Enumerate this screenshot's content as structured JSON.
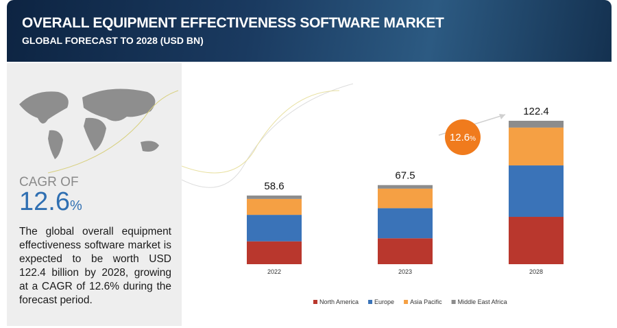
{
  "chart_data": {
    "type": "stacked-bar",
    "title": "OVERALL EQUIPMENT EFFECTIVENESS SOFTWARE MARKET",
    "subtitle": "GLOBAL FORECAST TO 2028 (USD BN)",
    "categories": [
      "2022",
      "2023",
      "2028"
    ],
    "series": [
      {
        "name": "North America",
        "color": "#b9372d",
        "values": [
          19.5,
          22.1,
          40.4
        ]
      },
      {
        "name": "Europe",
        "color": "#3a73b8",
        "values": [
          22.6,
          25.7,
          43.9
        ]
      },
      {
        "name": "Asia Pacific",
        "color": "#f5a044",
        "values": [
          13.6,
          16.7,
          32.3
        ]
      },
      {
        "name": "Middle East Africa",
        "color": "#8c8c8c",
        "values": [
          2.9,
          3.0,
          5.8
        ]
      }
    ],
    "totals": [
      58.6,
      67.5,
      122.4
    ],
    "badge": {
      "value": "12.6",
      "unit": "%"
    }
  },
  "panel": {
    "cagr_label": "CAGR OF",
    "cagr_value": "12.6",
    "cagr_unit": "%",
    "description": "The global overall equipment effectiveness software market is expected to be worth USD 122.4 billion by 2028, growing at a CAGR of 12.6% during the forecast period."
  }
}
